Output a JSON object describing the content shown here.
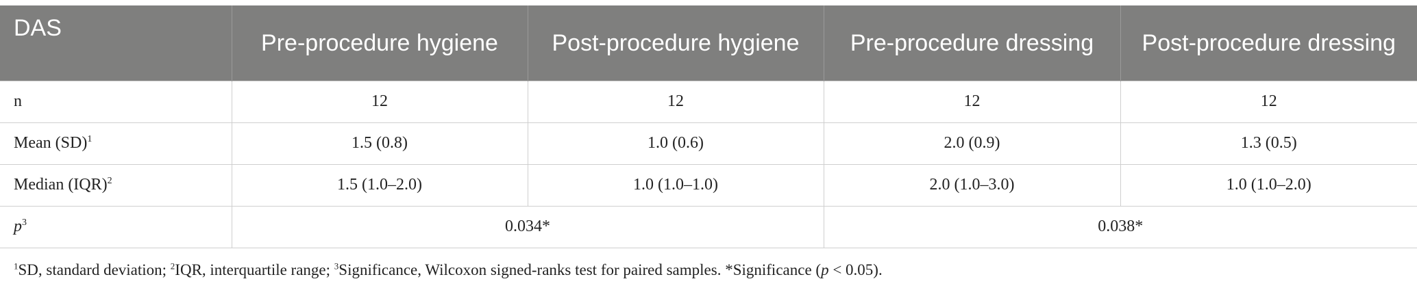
{
  "table": {
    "headers": [
      "DAS",
      "Pre-procedure hygiene",
      "Post-procedure hygiene",
      "Pre-procedure dressing",
      "Post-procedure dressing"
    ],
    "rows": {
      "n": {
        "label": "n",
        "values": [
          "12",
          "12",
          "12",
          "12"
        ]
      },
      "mean": {
        "label": "Mean (SD)",
        "sup": "1",
        "values": [
          "1.5 (0.8)",
          "1.0 (0.6)",
          "2.0 (0.9)",
          "1.3 (0.5)"
        ]
      },
      "median": {
        "label": "Median (IQR)",
        "sup": "2",
        "values": [
          "1.5 (1.0–2.0)",
          "1.0 (1.0–1.0)",
          "2.0 (1.0–3.0)",
          "1.0 (1.0–2.0)"
        ]
      },
      "p": {
        "label": "p",
        "sup": "3",
        "values": [
          "0.034*",
          "0.038*"
        ]
      }
    }
  },
  "footnote": {
    "s1": "1",
    "t1": "SD, standard deviation; ",
    "s2": "2",
    "t2": "IQR, interquartile range; ",
    "s3": "3",
    "t3": "Significance, Wilcoxon signed-ranks test for paired samples. *Significance (",
    "p_italic": "p",
    "t4": " < 0.05)."
  }
}
